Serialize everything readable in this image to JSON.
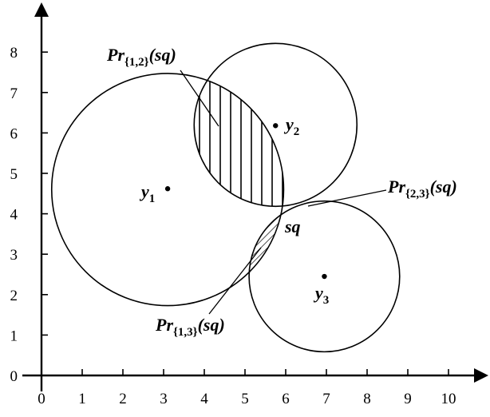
{
  "x_ticks": [
    "0",
    "1",
    "2",
    "3",
    "4",
    "5",
    "6",
    "7",
    "8",
    "9",
    "10"
  ],
  "y_ticks": [
    "0",
    "1",
    "2",
    "3",
    "4",
    "5",
    "6",
    "7",
    "8"
  ],
  "points": [
    {
      "main": "y",
      "sub": "1",
      "x": 3.1,
      "y": 4.62
    },
    {
      "main": "y",
      "sub": "2",
      "x": 5.75,
      "y": 6.18
    },
    {
      "main": "y",
      "sub": "3",
      "x": 6.95,
      "y": 2.45
    }
  ],
  "circles": [
    {
      "cx": 3.1,
      "cy": 4.6,
      "r": 2.85
    },
    {
      "cx": 5.75,
      "cy": 6.2,
      "r": 2.0
    },
    {
      "cx": 6.95,
      "cy": 2.45,
      "r": 1.85
    }
  ],
  "sq_label": "sq",
  "labels": {
    "pr12": {
      "main": "Pr",
      "sub": "{1,2}",
      "arg": "(sq)"
    },
    "pr23": {
      "main": "Pr",
      "sub": "{2,3}",
      "arg": "(sq)"
    },
    "pr13": {
      "main": "Pr",
      "sub": "{1,3}",
      "arg": "(sq)"
    }
  }
}
